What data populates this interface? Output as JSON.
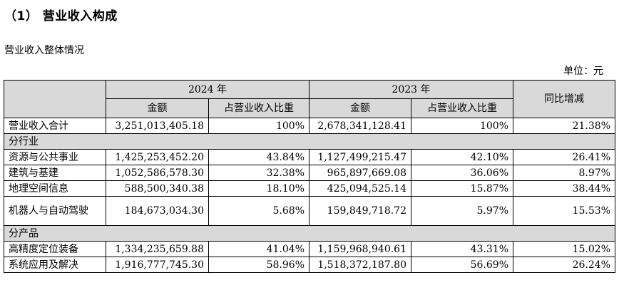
{
  "heading": "（1） 营业收入构成",
  "subheading": "营业收入整体情况",
  "unit": "单位：元",
  "table": {
    "year_2024": "2024 年",
    "year_2023": "2023 年",
    "yoy": "同比增减",
    "amount": "金额",
    "share": "占营业收入比重",
    "total": {
      "label": "营业收入合计",
      "amount_2024": "3,251,013,405.18",
      "share_2024": "100%",
      "amount_2023": "2,678,341,128.41",
      "share_2023": "100%",
      "yoy": "21.38%"
    },
    "industry_group": "分行业",
    "industry_rows": [
      {
        "label": "资源与公共事业",
        "amount_2024": "1,425,253,452.20",
        "share_2024": "43.84%",
        "amount_2023": "1,127,499,215.47",
        "share_2023": "42.10%",
        "yoy": "26.41%"
      },
      {
        "label": "建筑与基建",
        "amount_2024": "1,052,586,578.30",
        "share_2024": "32.38%",
        "amount_2023": "965,897,669.08",
        "share_2023": "36.06%",
        "yoy": "8.97%"
      },
      {
        "label": "地理空间信息",
        "amount_2024": "588,500,340.38",
        "share_2024": "18.10%",
        "amount_2023": "425,094,525.14",
        "share_2023": "15.87%",
        "yoy": "38.44%"
      },
      {
        "label": "机器人与自动驾驶",
        "amount_2024": "184,673,034.30",
        "share_2024": "5.68%",
        "amount_2023": "159,849,718.72",
        "share_2023": "5.97%",
        "yoy": "15.53%"
      }
    ],
    "product_group": "分产品",
    "product_rows": [
      {
        "label": "高精度定位装备",
        "amount_2024": "1,334,235,659.88",
        "share_2024": "41.04%",
        "amount_2023": "1,159,968,940.61",
        "share_2023": "43.31%",
        "yoy": "15.02%"
      },
      {
        "label": "系统应用及解决",
        "amount_2024": "1,916,777,745.30",
        "share_2024": "58.96%",
        "amount_2023": "1,518,372,187.80",
        "share_2023": "56.69%",
        "yoy": "26.24%"
      }
    ]
  }
}
